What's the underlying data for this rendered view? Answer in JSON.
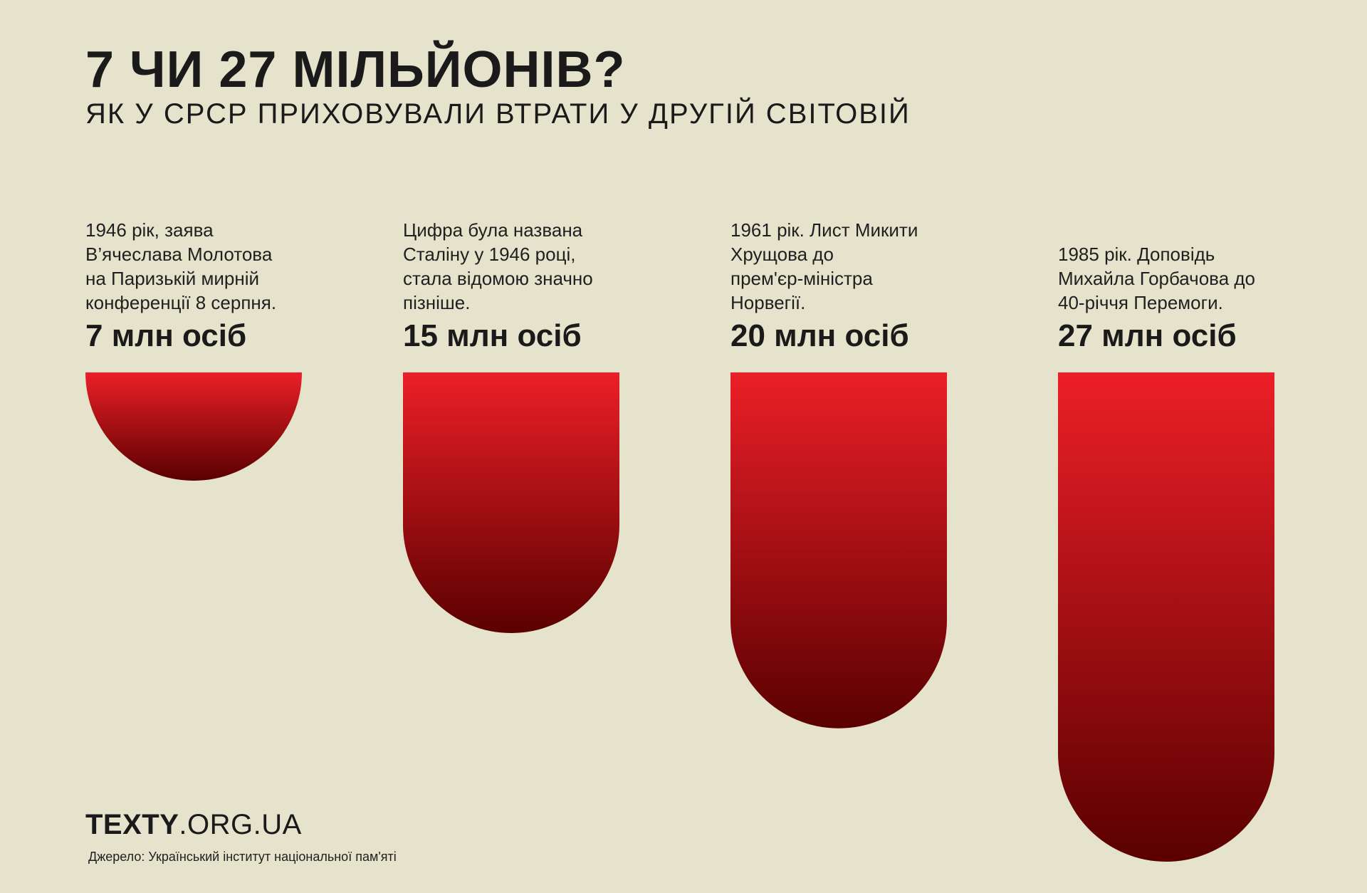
{
  "header": {
    "title": "7 ЧИ 27 МІЛЬЙОНІВ?",
    "subtitle": "ЯК У СРСР ПРИХОВУВАЛИ ВТРАТИ У ДРУГІЙ СВІТОВІЙ"
  },
  "chart_data": {
    "type": "bar",
    "orientation": "vertical-hanging",
    "categories": [
      "1946 рік, заява В’ячеслава Молотова на Паризькій мирній конференції 8 серпня.",
      "Цифра була названа Сталіну у 1946 році, стала відомою значно пізніше.",
      "1961 рік. Лист Микити Хрущова до прем'єр-міністра Норвегії.",
      "1985 рік. Доповідь Михайла Горбачова до 40-річчя Перемоги."
    ],
    "values": [
      7,
      15,
      20,
      27
    ],
    "unit": "млн осіб",
    "data_labels": [
      "7 млн осіб",
      "15 млн осіб",
      "20 млн осіб",
      "27 млн осіб"
    ],
    "title": "7 ЧИ 27 МІЛЬЙОНІВ?",
    "subtitle": "ЯК У СРСР ПРИХОВУВАЛИ ВТРАТИ У ДРУГІЙ СВІТОВІЙ",
    "xlabel": "",
    "ylabel": "",
    "ylim": [
      0,
      27
    ],
    "grid": false,
    "legend": "none",
    "colors": {
      "bar_top": "#ec1f27",
      "bar_bottom": "#5a0000"
    }
  },
  "notes": [
    [
      "1946 рік, заява",
      "В’ячеслава Молотова",
      "на Паризькій мирній",
      "конференції 8 серпня."
    ],
    [
      "Цифра була названа",
      "Сталіну у 1946 році,",
      "стала відомою значно",
      "пізніше."
    ],
    [
      "1961 рік. Лист Микити",
      "Хрущова до",
      "прем'єр-міністра",
      "Норвегії."
    ],
    [
      "1985 рік. Доповідь",
      "Михайла Горбачова до",
      "40-річчя Перемоги."
    ]
  ],
  "footer": {
    "brand_bold": "TEXTY",
    "brand_rest": ".ORG.UA",
    "source": "Джерело: Український інститут національної пам'яті"
  },
  "colors": {
    "background": "#e6e3cc",
    "text": "#1a1a1a"
  }
}
